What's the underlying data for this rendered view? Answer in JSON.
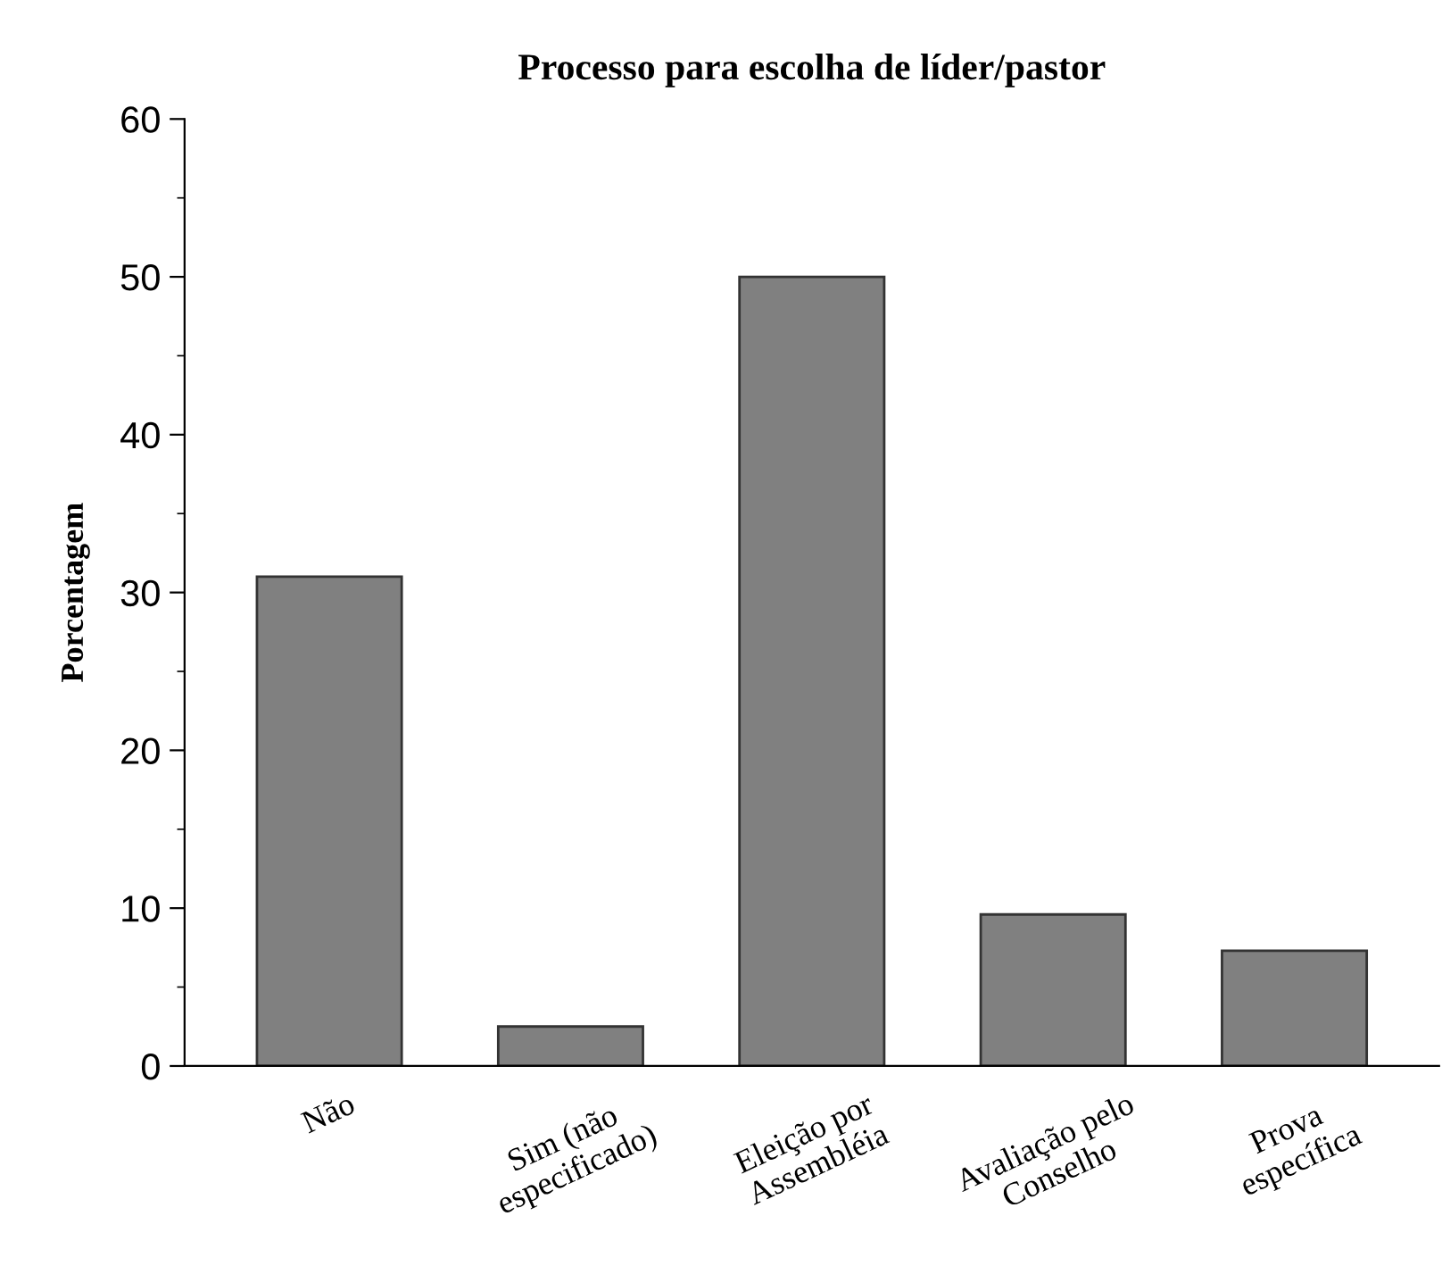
{
  "chart_data": {
    "type": "bar",
    "title": "Processo para escolha de líder/pastor",
    "ylabel": "Porcentagem",
    "categories": [
      "Não",
      "Sim (não\nespecificado)",
      "Eleição por\nAssembléia",
      "Avaliação pelo\nConselho",
      "Prova\nespecífica"
    ],
    "values": [
      31,
      2.5,
      50,
      9.6,
      7.3
    ],
    "color": "#808080",
    "ylim": [
      0,
      60
    ],
    "yticks": [
      0,
      10,
      20,
      30,
      40,
      50,
      60
    ],
    "grid": false,
    "legend": false
  }
}
